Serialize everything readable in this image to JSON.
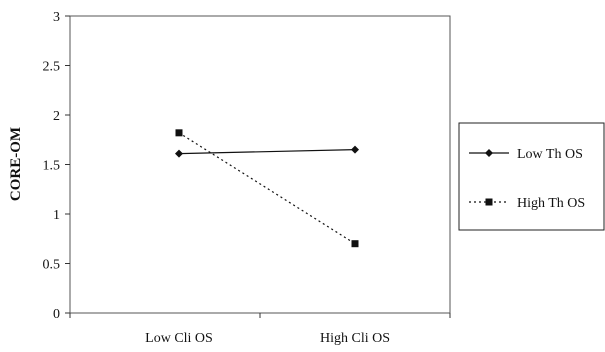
{
  "chart_data": {
    "type": "line",
    "title": "",
    "xlabel": "",
    "ylabel": "CORE-OM",
    "categories": [
      "Low Cli OS",
      "High Cli OS"
    ],
    "ylim": [
      0,
      3
    ],
    "yticks": [
      "0",
      "0.5",
      "1",
      "1.5",
      "2",
      "2.5",
      "3"
    ],
    "grid": false,
    "legend_position": "right",
    "series": [
      {
        "name": "Low Th OS",
        "values": [
          1.61,
          1.65
        ],
        "marker": "diamond",
        "line": "solid",
        "color": "#111111"
      },
      {
        "name": "High Th OS",
        "values": [
          1.82,
          0.7
        ],
        "marker": "square",
        "line": "dotted",
        "color": "#111111"
      }
    ]
  }
}
